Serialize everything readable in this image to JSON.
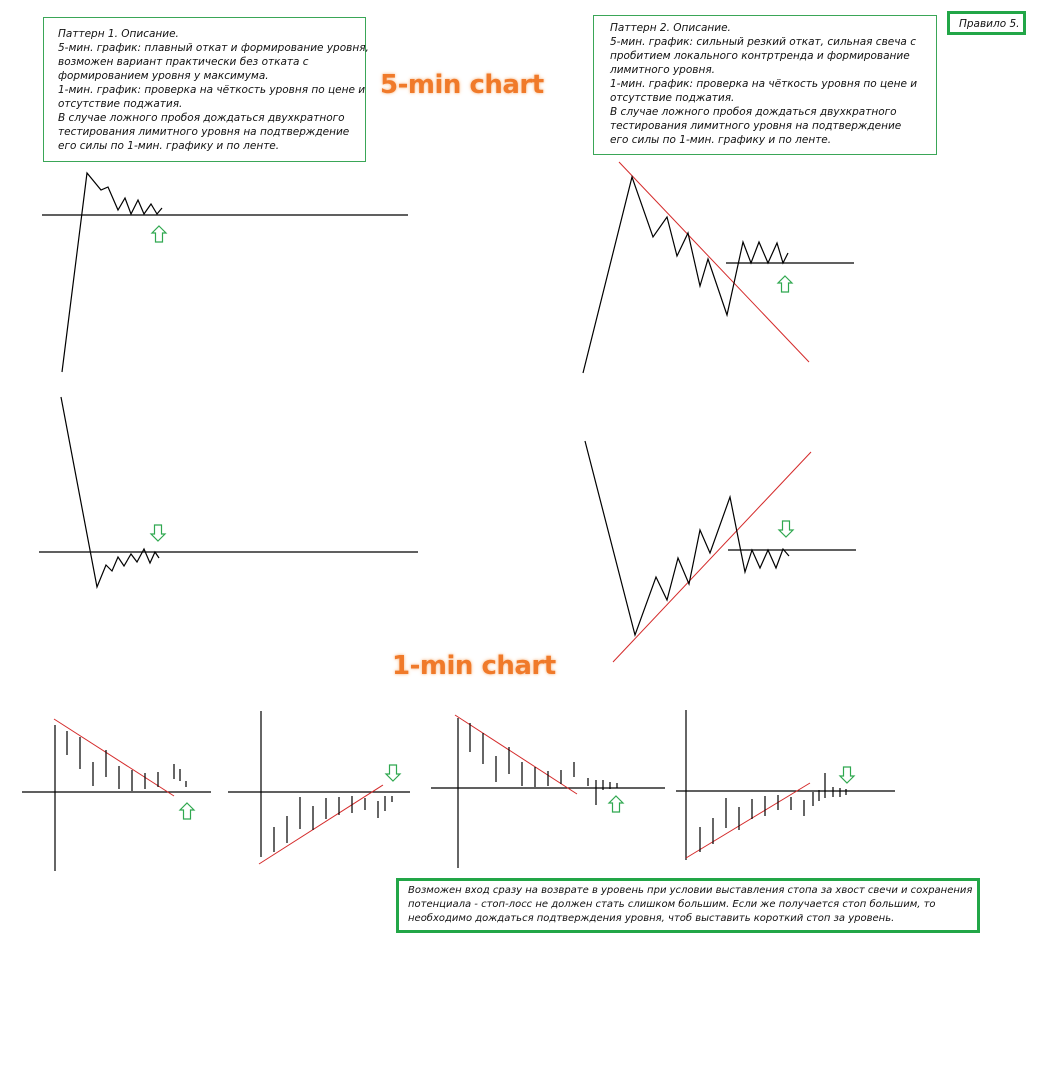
{
  "notes": {
    "pattern1": [
      "Паттерн 1. Описание.",
      "5-мин. график: плавный откат и формирование уровня,",
      "возможен вариант практически без отката с",
      "формированием уровня у максимума.",
      "1-мин. график: проверка на чёткость уровня по цене и",
      "отсутствие поджатия.",
      "В случае ложного пробоя дождаться двухкратного",
      "тестирования лимитного уровня на подтверждение",
      "его силы по 1-мин. графику и по ленте."
    ],
    "pattern2": [
      "Паттерн 2. Описание.",
      "5-мин. график: сильный резкий откат, сильная свеча с",
      "пробитием локального контртренда и формирование",
      "лимитного уровня.",
      "1-мин. график: проверка на чёткость уровня по цене и",
      "отсутствие поджатия.",
      "В случае ложного пробоя дождаться двухкратного",
      "тестирования лимитного уровня на подтверждение",
      "его силы по 1-мин. графику и по ленте."
    ],
    "rule": "Правило 5.",
    "bottom": [
      "Возможен вход сразу на возврате в уровень при условии выставления стопа за хвост свечи и сохранения",
      "потенциала - стоп-лосс не должен стать слишком большим. Если же получается стоп большим, то",
      "необходимо дождаться подтверждения уровня, чтоб выставить короткий стоп за уровень."
    ]
  },
  "headings": {
    "five_min": "5-min chart",
    "one_min": "1-min chart"
  },
  "colors": {
    "note_border": "#3aa657",
    "frame_border": "#22a647",
    "heading": "#f07a2a",
    "trendline": "#d42a2a",
    "arrow": "#2fa84f",
    "line": "#000000"
  },
  "icons": {
    "up": "arrow-up-outline-icon",
    "down": "arrow-down-outline-icon"
  }
}
